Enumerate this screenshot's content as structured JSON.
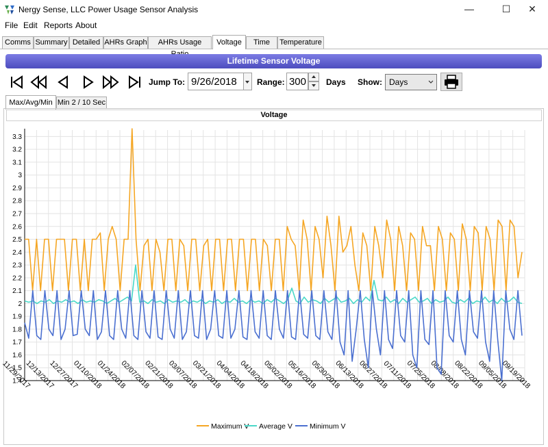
{
  "window": {
    "title": "Nergy Sense, LLC Power Usage Sensor Analysis",
    "minimize": "—",
    "maximize": "☐",
    "close": "✕"
  },
  "menu": [
    "File",
    "Edit",
    "Reports",
    "About"
  ],
  "tabs": [
    {
      "label": "Comms",
      "active": false
    },
    {
      "label": "Summary",
      "active": false
    },
    {
      "label": "Detailed",
      "active": false
    },
    {
      "label": "AHRs Graph",
      "active": false
    },
    {
      "label": "AHRs Usage Ratio",
      "active": false
    },
    {
      "label": "Voltage",
      "active": true
    },
    {
      "label": "Time",
      "active": false
    },
    {
      "label": "Temperature",
      "active": false
    }
  ],
  "banner": "Lifetime Sensor Voltage",
  "controls": {
    "jump_to_label": "Jump To:",
    "jump_to_value": "9/26/2018",
    "range_label": "Range:",
    "range_value": "300",
    "range_unit": "Days",
    "show_label": "Show:",
    "show_value": "Days"
  },
  "subtabs": [
    {
      "label": "Max/Avg/Min",
      "active": true
    },
    {
      "label": "Min 2 / 10 Sec",
      "active": false
    }
  ],
  "colors": {
    "max": "#f5a623",
    "avg": "#49d8c8",
    "min": "#4a6fd0",
    "banner": "#5a5ad0"
  },
  "chart_data": {
    "type": "line",
    "title": "Voltage",
    "xlabel": "",
    "ylabel": "",
    "ylim": [
      1.4,
      3.35
    ],
    "yticks": [
      "3.3",
      "3.2",
      "3.1",
      "3",
      "2.9",
      "2.8",
      "2.7",
      "2.6",
      "2.5",
      "2.4",
      "2.3",
      "2.2",
      "2.1",
      "2",
      "1.9",
      "1.8",
      "1.7",
      "1.6",
      "1.5",
      "1.4"
    ],
    "x_tick_labels": [
      "11/29/2017",
      "12/13/2017",
      "12/27/2017",
      "01/10/2018",
      "01/24/2018",
      "02/07/2018",
      "02/21/2018",
      "03/07/2018",
      "03/21/2018",
      "04/04/2018",
      "04/18/2018",
      "05/02/2018",
      "05/16/2018",
      "05/30/2018",
      "06/13/2018",
      "06/27/2018",
      "07/11/2018",
      "07/25/2018",
      "08/08/2018",
      "08/22/2018",
      "09/05/2018",
      "09/19/2018"
    ],
    "legend_position": "bottom",
    "series": [
      {
        "name": "Maximum V",
        "color": "#f5a623",
        "values": [
          2.5,
          2.5,
          2.1,
          2.5,
          2.1,
          2.5,
          2.5,
          2.1,
          2.5,
          2.5,
          2.5,
          2.1,
          2.5,
          2.5,
          2.1,
          2.5,
          2.1,
          2.5,
          2.5,
          2.55,
          2.1,
          2.5,
          2.6,
          2.5,
          2.1,
          2.5,
          2.5,
          3.36,
          2.5,
          2.1,
          2.45,
          2.5,
          2.1,
          2.5,
          2.4,
          2.1,
          2.5,
          2.5,
          2.1,
          2.5,
          2.45,
          2.1,
          2.5,
          2.5,
          2.1,
          2.45,
          2.5,
          2.1,
          2.5,
          2.5,
          2.1,
          2.5,
          2.5,
          2.1,
          2.5,
          2.5,
          2.1,
          2.5,
          2.5,
          2.1,
          2.5,
          2.45,
          2.1,
          2.5,
          2.5,
          2.1,
          2.6,
          2.5,
          2.45,
          2.1,
          2.65,
          2.5,
          2.1,
          2.6,
          2.5,
          2.2,
          2.68,
          2.45,
          2.1,
          2.68,
          2.4,
          2.45,
          2.6,
          2.3,
          2.1,
          2.55,
          2.45,
          2.1,
          2.6,
          2.45,
          2.2,
          2.65,
          2.5,
          2.1,
          2.6,
          2.45,
          2.1,
          2.55,
          2.5,
          2.1,
          2.6,
          2.45,
          2.45,
          2.1,
          2.6,
          2.5,
          2.1,
          2.55,
          2.5,
          2.1,
          2.62,
          2.5,
          2.1,
          2.6,
          2.55,
          2.1,
          2.6,
          2.5,
          2.1,
          2.65,
          2.6,
          2.1,
          2.65,
          2.6,
          2.2,
          2.4
        ]
      },
      {
        "name": "Average V",
        "color": "#49d8c8",
        "values": [
          2.02,
          2.01,
          2.02,
          2.0,
          2.02,
          2.01,
          2.03,
          2.0,
          2.02,
          2.01,
          2.03,
          2.01,
          2.02,
          2.0,
          2.03,
          2.01,
          2.02,
          2.01,
          2.03,
          2.02,
          2.0,
          2.02,
          2.04,
          2.01,
          2.03,
          2.05,
          2.02,
          2.3,
          2.01,
          2.02,
          2.0,
          2.03,
          2.01,
          2.02,
          2.0,
          2.03,
          2.01,
          2.02,
          2.01,
          2.03,
          2.0,
          2.02,
          2.01,
          2.03,
          2.0,
          2.02,
          2.01,
          2.03,
          2.0,
          2.02,
          2.01,
          2.04,
          2.01,
          2.02,
          2.0,
          2.03,
          2.01,
          2.02,
          2.0,
          2.03,
          2.01,
          2.04,
          2.02,
          2.0,
          2.03,
          2.12,
          2.02,
          2.0,
          2.05,
          2.01,
          2.03,
          2.02,
          2.0,
          2.04,
          2.01,
          2.03,
          2.05,
          2.01,
          2.02,
          2.04,
          2.0,
          2.03,
          2.01,
          2.05,
          2.02,
          2.18,
          2.03,
          2.02,
          2.05,
          2.01,
          2.03,
          2.0,
          2.04,
          2.01,
          2.03,
          2.05,
          2.01,
          2.02,
          2.04,
          2.0,
          2.03,
          2.01,
          2.02,
          2.05,
          2.01,
          2.0,
          2.03,
          2.01,
          2.04,
          2.0,
          2.02,
          2.01,
          2.05,
          2.01,
          2.03,
          2.0,
          2.04,
          2.01,
          2.02,
          2.05,
          2.01,
          2.0
        ]
      },
      {
        "name": "Minimum V",
        "color": "#4a6fd0",
        "values": [
          1.85,
          1.73,
          2.1,
          1.75,
          1.72,
          2.1,
          1.8,
          1.75,
          2.1,
          1.72,
          1.8,
          2.1,
          1.75,
          1.76,
          2.1,
          1.8,
          1.75,
          2.1,
          1.72,
          1.78,
          2.1,
          1.75,
          1.72,
          2.1,
          1.8,
          1.73,
          2.1,
          1.75,
          1.72,
          2.1,
          1.78,
          1.73,
          2.1,
          1.74,
          1.72,
          2.1,
          1.8,
          1.73,
          2.1,
          1.72,
          1.78,
          2.1,
          1.75,
          1.73,
          2.1,
          1.72,
          1.8,
          2.1,
          1.75,
          1.73,
          2.1,
          1.73,
          1.8,
          2.1,
          1.74,
          1.72,
          2.1,
          1.78,
          1.73,
          2.1,
          1.75,
          1.72,
          2.1,
          1.8,
          1.73,
          2.1,
          1.74,
          1.72,
          2.1,
          1.76,
          1.73,
          2.1,
          1.75,
          1.72,
          2.1,
          1.78,
          1.72,
          2.1,
          1.7,
          1.6,
          2.1,
          1.55,
          1.8,
          2.1,
          1.72,
          1.5,
          2.1,
          1.8,
          1.6,
          2.1,
          1.72,
          1.65,
          2.1,
          1.75,
          1.7,
          2.1,
          1.6,
          1.5,
          2.1,
          1.72,
          1.68,
          2.1,
          1.5,
          1.45,
          2.1,
          1.75,
          1.7,
          2.1,
          1.72,
          1.6,
          2.1,
          1.78,
          1.73,
          2.1,
          1.7,
          1.55,
          2.1,
          1.72,
          1.38,
          2.1,
          1.8,
          1.72,
          2.1,
          1.75
        ]
      }
    ]
  }
}
